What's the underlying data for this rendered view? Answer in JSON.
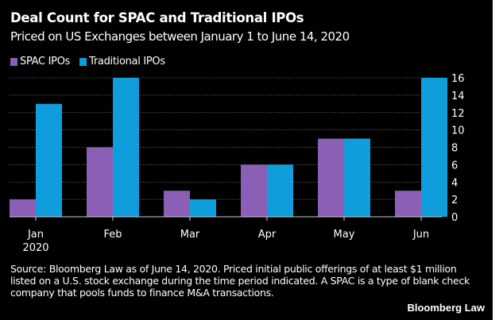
{
  "chart_data": {
    "type": "bar",
    "title": "Deal Count for SPAC and Traditional IPOs",
    "subtitle": "Priced on US Exchanges between January 1 to June 14, 2020",
    "categories": [
      "Jan",
      "Feb",
      "Mar",
      "Apr",
      "May",
      "Jun"
    ],
    "category_sublabels": [
      "2020",
      "",
      "",
      "",
      "",
      ""
    ],
    "series": [
      {
        "name": "SPAC IPOs",
        "color": "#8a5fb5",
        "values": [
          2,
          8,
          3,
          6,
          9,
          3
        ]
      },
      {
        "name": "Traditional IPOs",
        "color": "#0f9ddb",
        "values": [
          13,
          16,
          2,
          6,
          9,
          16
        ]
      }
    ],
    "ylim": [
      0,
      16
    ],
    "yticks": [
      0,
      2,
      4,
      6,
      8,
      10,
      12,
      14,
      16
    ],
    "y_axis_side": "right",
    "grid": true,
    "legend_placement": "top-left"
  },
  "footer": {
    "source": "Source: Bloomberg Law as of June 14, 2020. Priced initial public offerings of at least $1 million listed on a U.S. stock exchange during the time period indicated. A SPAC is a type of blank check company that pools funds to finance M&A transactions.",
    "brand": "Bloomberg Law"
  }
}
